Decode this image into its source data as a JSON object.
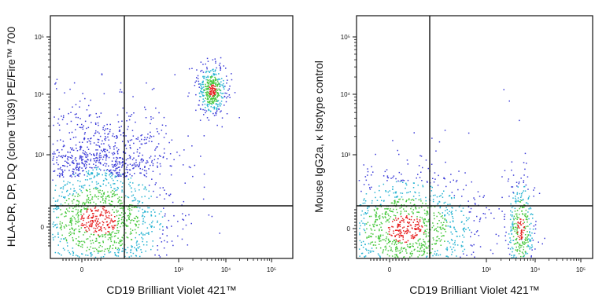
{
  "chart_data": [
    {
      "type": "scatter",
      "title": "",
      "xlabel": "CD19 Brilliant Violet 421™",
      "ylabel": "HLA-DR, DP, DQ (clone Tü39) PE/Fire™ 700",
      "x_scale": "biexponential",
      "y_scale": "biexponential",
      "x_tick_labels": [
        "0",
        "10³",
        "10⁴",
        "10⁵"
      ],
      "y_tick_labels": [
        "0",
        "10³",
        "10⁴",
        "10⁵"
      ],
      "gate_lines": {
        "x": 150,
        "y": 150
      },
      "grid": false,
      "legend": "none",
      "populations": [
        {
          "x_center": 20,
          "y_center": 10,
          "x_spread": 180,
          "y_spread": 150,
          "count": 1400,
          "shape": "cluster"
        },
        {
          "x_center": 20,
          "y_center": 300,
          "x_spread": 170,
          "y_spread": 1200,
          "count": 700,
          "shape": "column"
        },
        {
          "x_center": 5000,
          "y_center": 12000,
          "x_spread": 2500,
          "y_spread": 9000,
          "count": 420,
          "shape": "cluster"
        },
        {
          "x_center": 400,
          "y_center": 1200,
          "x_spread": 300,
          "y_spread": 500,
          "count": 4,
          "shape": "scatter"
        }
      ],
      "colors": {
        "sparse": "#3c3cd8",
        "mid": "#28b4d2",
        "dense": "#46c83c",
        "core": "#e61e1e"
      }
    },
    {
      "type": "scatter",
      "title": "",
      "xlabel": "CD19 Brilliant Violet 421™",
      "ylabel": "Mouse IgG2a, κ Isotype control",
      "x_scale": "biexponential",
      "y_scale": "biexponential",
      "x_tick_labels": [
        "0",
        "10³",
        "10⁴",
        "10⁵"
      ],
      "y_tick_labels": [
        "0",
        "10³",
        "10⁴",
        "10⁵"
      ],
      "gate_lines": {
        "x": 150,
        "y": 150
      },
      "grid": false,
      "legend": "none",
      "populations": [
        {
          "x_center": 20,
          "y_center": 0,
          "x_spread": 180,
          "y_spread": 90,
          "count": 1300,
          "shape": "cluster"
        },
        {
          "x_center": 5000,
          "y_center": 0,
          "x_spread": 2300,
          "y_spread": 80,
          "count": 380,
          "shape": "cluster"
        },
        {
          "x_center": -150,
          "y_center": 15000,
          "x_spread": 40,
          "y_spread": 15000,
          "count": 5,
          "shape": "scatter"
        },
        {
          "x_center": 4000,
          "y_center": 3000,
          "x_spread": 2000,
          "y_spread": 3000,
          "count": 3,
          "shape": "scatter"
        }
      ],
      "colors": {
        "sparse": "#3c3cd8",
        "mid": "#28b4d2",
        "dense": "#46c83c",
        "core": "#e61e1e"
      }
    }
  ]
}
